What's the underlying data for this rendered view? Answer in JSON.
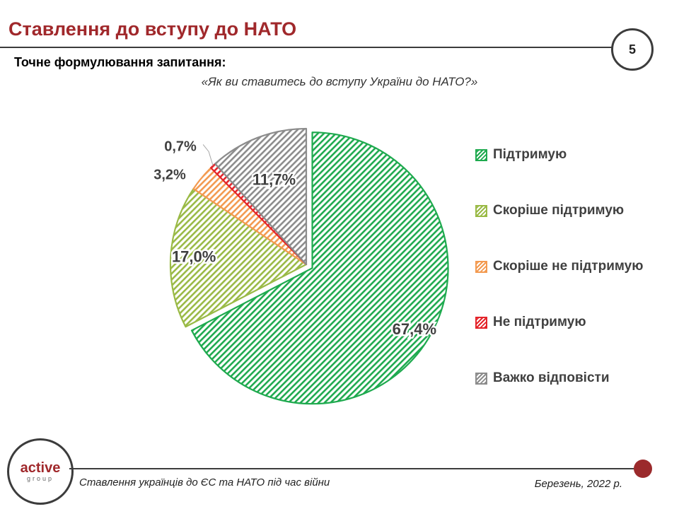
{
  "header": {
    "title": "Ставлення до вступу до НАТО",
    "page_number": "5",
    "question_label": "Точне формулювання запитання:",
    "question": "«Як ви ставитесь до вступу України до НАТО?»"
  },
  "chart_data": {
    "type": "pie",
    "labels": [
      "Підтримую",
      "Скоріше підтримую",
      "Скоріше не підтримую",
      "Не підтримую",
      "Важко відповісти"
    ],
    "values": [
      67.4,
      17.0,
      3.2,
      0.7,
      11.7
    ],
    "value_labels": [
      "67,4%",
      "17,0%",
      "3,2%",
      "0,7%",
      "11,7%"
    ],
    "colors": [
      "#1faa4f",
      "#9aba46",
      "#f39a50",
      "#e4242a",
      "#8c8c8c"
    ],
    "legend_position": "right",
    "start_angle_deg": 0,
    "direction": "clockwise",
    "exploded_slice": "Підтримую"
  },
  "footer": {
    "logo_text": "active",
    "logo_subtext": "group",
    "left": "Ставлення українців до ЄС та НАТО під час війни",
    "right": "Березень, 2022 р."
  }
}
